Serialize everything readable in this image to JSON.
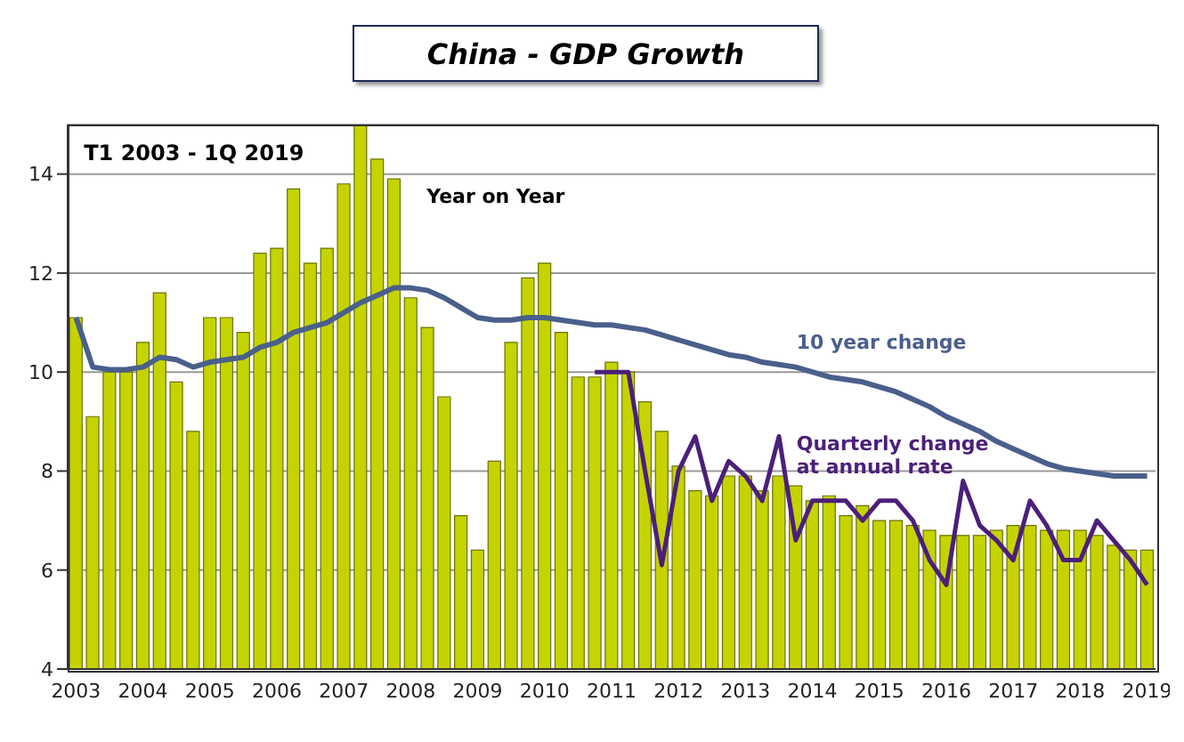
{
  "chart_data": {
    "type": "bar",
    "title": "China - GDP Growth",
    "categories": [
      "2003",
      null,
      null,
      null,
      "2004",
      null,
      null,
      null,
      "2005",
      null,
      null,
      null,
      "2006",
      null,
      null,
      null,
      "2007",
      null,
      null,
      null,
      "2008",
      null,
      null,
      null,
      "2009",
      null,
      null,
      null,
      "2010",
      null,
      null,
      null,
      "2011",
      null,
      null,
      null,
      "2012",
      null,
      null,
      null,
      "2013",
      null,
      null,
      null,
      "2014",
      null,
      null,
      null,
      "2015",
      null,
      null,
      null,
      "2016",
      null,
      null,
      null,
      "2017",
      null,
      null,
      null,
      "2018",
      null,
      null,
      null,
      "2019"
    ],
    "series": [
      {
        "name": "Year on Year",
        "color": "#c5d300",
        "values": [
          11.1,
          9.1,
          10.0,
          10.0,
          10.6,
          11.6,
          9.8,
          8.8,
          11.1,
          11.1,
          10.8,
          12.4,
          12.5,
          13.7,
          12.2,
          12.5,
          13.8,
          15.0,
          14.3,
          13.9,
          11.5,
          10.9,
          9.5,
          7.1,
          6.4,
          8.2,
          10.6,
          11.9,
          12.2,
          10.8,
          9.9,
          9.9,
          10.2,
          10.0,
          9.4,
          8.8,
          8.1,
          7.6,
          7.5,
          7.9,
          7.9,
          7.6,
          7.9,
          7.7,
          7.4,
          7.5,
          7.1,
          7.3,
          7.0,
          7.0,
          6.9,
          6.8,
          6.7,
          6.7,
          6.7,
          6.8,
          6.9,
          6.9,
          6.8,
          6.8,
          6.8,
          6.7,
          6.5,
          6.4,
          6.4
        ]
      },
      {
        "name": "10 year change",
        "type": "line",
        "color": "#4a5f8c",
        "values": [
          11.1,
          10.1,
          10.05,
          10.05,
          10.1,
          10.3,
          10.25,
          10.1,
          10.2,
          10.25,
          10.3,
          10.5,
          10.6,
          10.8,
          10.9,
          11.0,
          11.2,
          11.4,
          11.55,
          11.7,
          11.7,
          11.65,
          11.5,
          11.3,
          11.1,
          11.05,
          11.05,
          11.1,
          11.1,
          11.05,
          11.0,
          10.95,
          10.95,
          10.9,
          10.85,
          10.75,
          10.65,
          10.55,
          10.45,
          10.35,
          10.3,
          10.2,
          10.15,
          10.1,
          10.0,
          9.9,
          9.85,
          9.8,
          9.7,
          9.6,
          9.45,
          9.3,
          9.1,
          8.95,
          8.8,
          8.6,
          8.45,
          8.3,
          8.15,
          8.05,
          8.0,
          7.95,
          7.9,
          7.9,
          7.9
        ]
      },
      {
        "name": "Quarterly change at annual rate",
        "type": "line",
        "color": "#4b1f7a",
        "values": [
          null,
          null,
          null,
          null,
          null,
          null,
          null,
          null,
          null,
          null,
          null,
          null,
          null,
          null,
          null,
          null,
          null,
          null,
          null,
          null,
          null,
          null,
          null,
          null,
          null,
          null,
          null,
          null,
          null,
          null,
          null,
          10.0,
          10.0,
          10.0,
          8.0,
          6.1,
          8.0,
          8.7,
          7.4,
          8.2,
          7.9,
          7.4,
          8.7,
          6.6,
          7.4,
          7.4,
          7.4,
          7.0,
          7.4,
          7.4,
          7.0,
          6.2,
          5.7,
          7.8,
          6.9,
          6.6,
          6.2,
          7.4,
          6.9,
          6.2,
          6.2,
          7.0,
          6.6,
          6.2,
          5.7
        ]
      }
    ],
    "ylim": [
      4,
      15
    ],
    "yticks": [
      4,
      6,
      8,
      10,
      12,
      14
    ],
    "grid": "y",
    "marker": "none",
    "line_style": "solid",
    "annotations": [
      "T1 2003 - 1Q 2019"
    ]
  }
}
